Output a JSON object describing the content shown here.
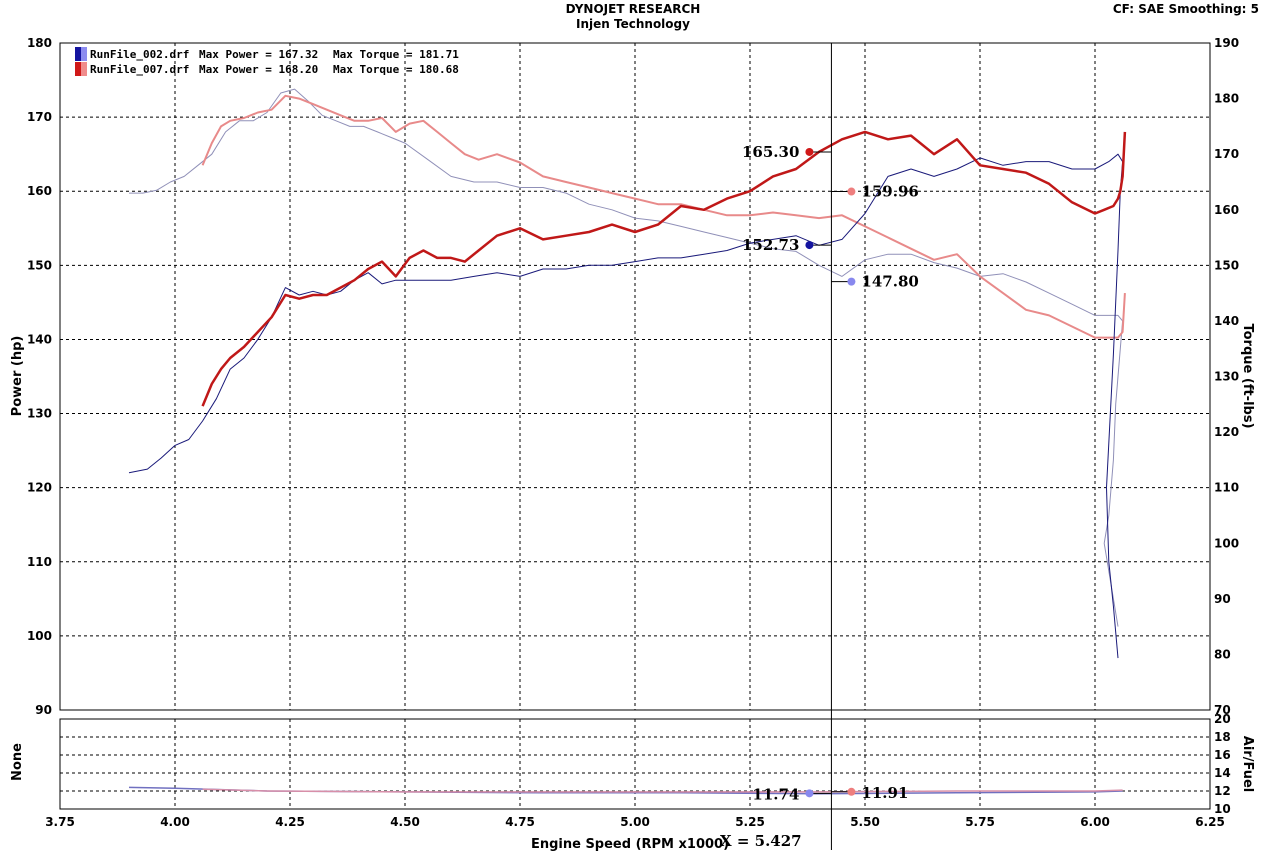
{
  "header": {
    "title": "DYNOJET RESEARCH",
    "subtitle": "Injen Technology",
    "settings": "CF: SAE  Smoothing: 5"
  },
  "cursor": {
    "label": "X = 5.427",
    "x": 5.427
  },
  "chart_data": [
    {
      "type": "line",
      "name": "power-torque",
      "xlabel": "Engine Speed (RPM x1000)",
      "ylabel_left": "Power (hp)",
      "ylabel_right": "Torque (ft-lbs)",
      "xlim": [
        3.75,
        6.25
      ],
      "ylim_left": [
        90,
        180
      ],
      "ylim_right": [
        70,
        190
      ],
      "x_ticks": [
        "3.75",
        "4.00",
        "4.25",
        "4.50",
        "4.75",
        "5.00",
        "5.25",
        "5.50",
        "5.75",
        "6.00",
        "6.25"
      ],
      "y_ticks_left": [
        "90",
        "100",
        "110",
        "120",
        "130",
        "140",
        "150",
        "160",
        "170",
        "180"
      ],
      "y_ticks_right": [
        "70",
        "80",
        "90",
        "100",
        "110",
        "120",
        "130",
        "140",
        "150",
        "160",
        "170",
        "180",
        "190"
      ],
      "grid": true,
      "legend_position": "top-left",
      "legend": [
        {
          "name": "RunFile_002.drf",
          "max_power_label": "Max Power = 167.32",
          "max_torque_label": "Max Torque = 181.71",
          "color": "#1414a0"
        },
        {
          "name": "RunFile_007.drf",
          "max_power_label": "Max Power = 168.20",
          "max_torque_label": "Max Torque = 180.68",
          "color": "#d01818"
        }
      ],
      "cursor_values": [
        {
          "label": "165.30",
          "value": 165.3,
          "axis": "left",
          "color": "#d01818",
          "side": "left"
        },
        {
          "label": "152.73",
          "value": 152.73,
          "axis": "left",
          "color": "#1414a0",
          "side": "left"
        },
        {
          "label": "159.96",
          "value": 159.96,
          "axis": "left",
          "color": "#ee7e7e",
          "side": "right"
        },
        {
          "label": "147.80",
          "value": 147.8,
          "axis": "left",
          "color": "#8888ee",
          "side": "right"
        }
      ],
      "series": [
        {
          "name": "RunFile_002 Power",
          "axis": "left",
          "color": "#1a1a7a",
          "width": 1,
          "x": [
            3.9,
            3.94,
            3.97,
            4.0,
            4.03,
            4.06,
            4.09,
            4.12,
            4.15,
            4.18,
            4.21,
            4.24,
            4.27,
            4.3,
            4.33,
            4.36,
            4.39,
            4.42,
            4.45,
            4.48,
            4.51,
            4.55,
            4.6,
            4.65,
            4.7,
            4.75,
            4.8,
            4.85,
            4.9,
            4.95,
            5.0,
            5.05,
            5.1,
            5.15,
            5.2,
            5.25,
            5.3,
            5.35,
            5.4,
            5.45,
            5.5,
            5.55,
            5.6,
            5.65,
            5.7,
            5.75,
            5.8,
            5.85,
            5.9,
            5.95,
            6.0,
            6.03,
            6.05,
            6.06,
            6.055,
            6.05,
            6.04,
            6.03,
            6.025,
            6.03,
            6.04,
            6.05
          ],
          "y": [
            122,
            122.5,
            124,
            125.7,
            126.5,
            129,
            132,
            136,
            137.5,
            140,
            143,
            147,
            146,
            146.5,
            146,
            146.5,
            148,
            149,
            147.5,
            148,
            148,
            148,
            148,
            148.5,
            149,
            148.5,
            149.5,
            149.5,
            150,
            150,
            150.5,
            151,
            151,
            151.5,
            152,
            153,
            153.5,
            154,
            152.7,
            153.5,
            157,
            162,
            163,
            162,
            163,
            164.5,
            163.5,
            164,
            164,
            163,
            163,
            164,
            165,
            164,
            160,
            152,
            138,
            126,
            120,
            110,
            104,
            97
          ]
        },
        {
          "name": "RunFile_007 Power",
          "axis": "left",
          "color": "#c01818",
          "width": 2.5,
          "x": [
            4.06,
            4.08,
            4.1,
            4.12,
            4.15,
            4.18,
            4.21,
            4.24,
            4.27,
            4.3,
            4.33,
            4.36,
            4.39,
            4.42,
            4.45,
            4.48,
            4.51,
            4.54,
            4.57,
            4.6,
            4.63,
            4.66,
            4.7,
            4.75,
            4.8,
            4.85,
            4.9,
            4.95,
            5.0,
            5.05,
            5.1,
            5.15,
            5.2,
            5.25,
            5.3,
            5.35,
            5.4,
            5.45,
            5.5,
            5.55,
            5.6,
            5.65,
            5.7,
            5.75,
            5.8,
            5.85,
            5.9,
            5.95,
            6.0,
            6.02,
            6.04,
            6.05,
            6.055,
            6.06,
            6.065
          ],
          "y": [
            131,
            134,
            136,
            137.5,
            139,
            141,
            143,
            146,
            145.5,
            146,
            146,
            147,
            148,
            149.5,
            150.5,
            148.5,
            151,
            152,
            151,
            151,
            150.5,
            152,
            154,
            155,
            153.5,
            154,
            154.5,
            155.5,
            154.5,
            155.5,
            158,
            157.5,
            159,
            160,
            162,
            163,
            165.3,
            167,
            168,
            167,
            167.5,
            165,
            167,
            163.5,
            163,
            162.5,
            161,
            158.5,
            157,
            157.5,
            158,
            159,
            160,
            162,
            168
          ]
        },
        {
          "name": "RunFile_002 Torque",
          "axis": "right",
          "color": "#9090b8",
          "width": 1,
          "x": [
            3.9,
            3.93,
            3.96,
            3.99,
            4.02,
            4.05,
            4.08,
            4.11,
            4.14,
            4.17,
            4.2,
            4.23,
            4.26,
            4.29,
            4.32,
            4.35,
            4.38,
            4.41,
            4.44,
            4.47,
            4.5,
            4.55,
            4.6,
            4.65,
            4.7,
            4.75,
            4.8,
            4.85,
            4.9,
            4.95,
            5.0,
            5.05,
            5.1,
            5.15,
            5.2,
            5.25,
            5.3,
            5.35,
            5.4,
            5.45,
            5.5,
            5.55,
            5.6,
            5.65,
            5.7,
            5.75,
            5.8,
            5.85,
            5.9,
            5.95,
            6.0,
            6.03,
            6.05,
            6.06,
            6.055,
            6.045,
            6.04,
            6.03,
            6.02,
            6.03,
            6.05
          ],
          "y": [
            163,
            163,
            163.5,
            165,
            166,
            168,
            170,
            174,
            176,
            176,
            177.5,
            181,
            181.7,
            179.5,
            177,
            176,
            175,
            175,
            174,
            173,
            172,
            169,
            166,
            165,
            165,
            164,
            164,
            163,
            161,
            160,
            158.5,
            158,
            157,
            156,
            155,
            154,
            153,
            152.5,
            150,
            148,
            151,
            152,
            152,
            150.5,
            149.5,
            148,
            148.5,
            147,
            145,
            143,
            141,
            141,
            141,
            140,
            135,
            125,
            115,
            105,
            100,
            95,
            85
          ]
        },
        {
          "name": "RunFile_007 Torque",
          "axis": "right",
          "color": "#e88a8a",
          "width": 2,
          "x": [
            4.06,
            4.08,
            4.1,
            4.12,
            4.15,
            4.18,
            4.21,
            4.24,
            4.27,
            4.3,
            4.33,
            4.36,
            4.39,
            4.42,
            4.45,
            4.48,
            4.51,
            4.54,
            4.57,
            4.6,
            4.63,
            4.66,
            4.7,
            4.75,
            4.8,
            4.85,
            4.9,
            4.95,
            5.0,
            5.05,
            5.1,
            5.15,
            5.2,
            5.25,
            5.3,
            5.35,
            5.4,
            5.45,
            5.5,
            5.55,
            5.6,
            5.65,
            5.7,
            5.75,
            5.8,
            5.85,
            5.9,
            5.95,
            6.0,
            6.03,
            6.05,
            6.06,
            6.065
          ],
          "y": [
            168,
            172,
            175,
            176,
            176.5,
            177.5,
            178,
            180.5,
            180,
            179,
            178,
            177,
            176,
            176,
            176.5,
            174,
            175.5,
            176,
            174,
            172,
            170,
            169,
            170,
            168.5,
            166,
            165,
            164,
            163,
            162,
            161,
            161,
            160,
            159,
            159,
            159.5,
            159,
            158.5,
            159,
            157,
            155,
            153,
            151,
            152,
            148,
            145,
            142,
            141,
            139,
            137,
            137,
            137,
            138,
            145
          ]
        }
      ]
    },
    {
      "type": "line",
      "name": "air-fuel",
      "ylabel_left": "None",
      "ylabel_right": "Air/Fuel",
      "xlim": [
        3.75,
        6.25
      ],
      "ylim_right": [
        10,
        20
      ],
      "y_ticks_right": [
        "10",
        "12",
        "14",
        "16",
        "18",
        "20"
      ],
      "grid": true,
      "cursor_values": [
        {
          "label": "11.74",
          "value": 11.74,
          "color": "#8888ee",
          "side": "left"
        },
        {
          "label": "11.91",
          "value": 11.91,
          "color": "#ee7e7e",
          "side": "right"
        }
      ],
      "series": [
        {
          "name": "RunFile_002 Air/Fuel",
          "color": "#7070c0",
          "width": 1.5,
          "x": [
            3.9,
            4.0,
            4.2,
            4.5,
            4.8,
            5.1,
            5.4,
            5.7,
            6.0,
            6.06
          ],
          "y": [
            12.4,
            12.3,
            12.0,
            11.9,
            11.8,
            11.8,
            11.7,
            11.8,
            11.9,
            12.0
          ]
        },
        {
          "name": "RunFile_007 Air/Fuel",
          "color": "#d88fa8",
          "width": 1.5,
          "x": [
            4.06,
            4.2,
            4.5,
            4.8,
            5.1,
            5.4,
            5.7,
            6.0,
            6.06
          ],
          "y": [
            12.2,
            12.0,
            11.9,
            11.9,
            11.9,
            11.9,
            12.0,
            12.0,
            12.1
          ]
        }
      ]
    }
  ]
}
